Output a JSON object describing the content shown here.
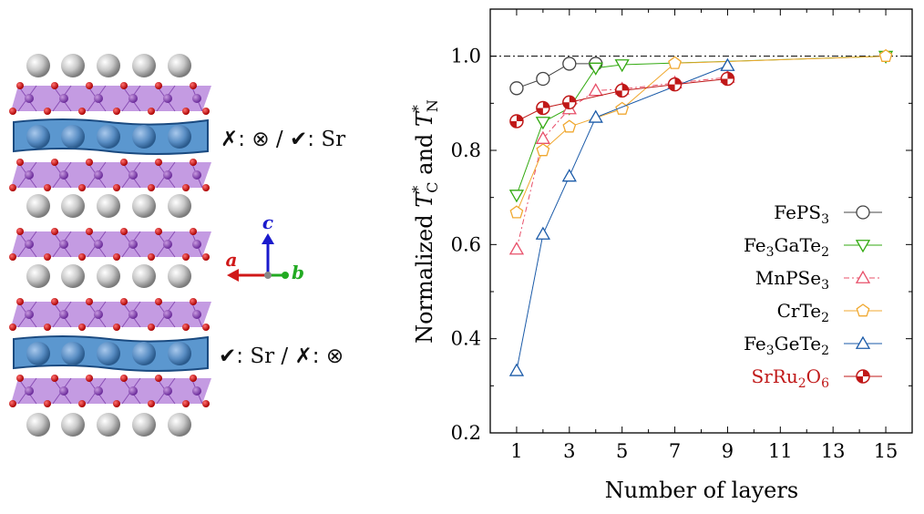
{
  "structure_panel": {
    "label_top_cross": "✗",
    "label_top_otimes": "⊗",
    "label_top_sep": " / ",
    "label_top_check": "✔",
    "label_top_element": "Sr",
    "label_bottom_check": "✔",
    "label_bottom_element": "Sr",
    "label_bottom_sep": " / ",
    "label_bottom_cross": "✗",
    "label_bottom_otimes": "⊗",
    "axis_c": "c",
    "axis_a": "a",
    "axis_b": "b",
    "colors": {
      "sphere_gray": "#c8c8c8",
      "oxygen": "#cc1010",
      "octahedra": "#9b59c6",
      "sr_layer": "#4a8cc8",
      "axis_c": "#1a1acc",
      "axis_a": "#d01818",
      "axis_b": "#22aa22"
    }
  },
  "chart_data": {
    "type": "line",
    "xlabel": "Number of layers",
    "ylabel_parts": [
      "Normalized ",
      "T",
      "*",
      "C",
      " and ",
      "T",
      "*",
      "N"
    ],
    "xlim": [
      0,
      16
    ],
    "ylim": [
      0.2,
      1.1
    ],
    "xticks": [
      1,
      3,
      5,
      7,
      9,
      11,
      13,
      15
    ],
    "yticks": [
      0.2,
      0.4,
      0.6,
      0.8,
      1.0
    ],
    "ytick_labels": [
      "0.2",
      "0.4",
      "0.6",
      "0.8",
      "1.0"
    ],
    "reference_line": 1.0,
    "grid": false,
    "legend_position": "right",
    "series": [
      {
        "name": "FePS3",
        "label_parts": [
          [
            "FePS",
            ""
          ],
          [
            "3",
            "sub"
          ]
        ],
        "color": "#444444",
        "marker": "circle",
        "dashed": false,
        "x": [
          1,
          2,
          3,
          4
        ],
        "y": [
          0.932,
          0.952,
          0.984,
          0.984
        ]
      },
      {
        "name": "Fe3GaTe2",
        "label_parts": [
          [
            "Fe",
            ""
          ],
          [
            "3",
            "sub"
          ],
          [
            "GaTe",
            ""
          ],
          [
            "2",
            "sub"
          ]
        ],
        "color": "#33aa11",
        "marker": "triangle-down",
        "dashed": false,
        "x": [
          1,
          2,
          3,
          4,
          5,
          15
        ],
        "y": [
          0.705,
          0.86,
          0.89,
          0.975,
          0.982,
          1.0
        ]
      },
      {
        "name": "MnPSe3",
        "label_parts": [
          [
            "MnPSe",
            ""
          ],
          [
            "3",
            "sub"
          ]
        ],
        "color": "#e8506a",
        "marker": "triangle-up",
        "dashed": true,
        "x": [
          1,
          2,
          3,
          4,
          5,
          7,
          9
        ],
        "y": [
          0.59,
          0.825,
          0.888,
          0.927,
          0.93,
          0.943,
          0.955
        ]
      },
      {
        "name": "CrTe2",
        "label_parts": [
          [
            "CrTe",
            ""
          ],
          [
            "2",
            "sub"
          ]
        ],
        "color": "#f0a830",
        "marker": "pentagon",
        "dashed": false,
        "x": [
          1,
          2,
          3,
          5,
          7,
          15
        ],
        "y": [
          0.668,
          0.8,
          0.85,
          0.888,
          0.985,
          1.0
        ]
      },
      {
        "name": "Fe3GeTe2",
        "label_parts": [
          [
            "Fe",
            ""
          ],
          [
            "3",
            "sub"
          ],
          [
            "GeTe",
            ""
          ],
          [
            "2",
            "sub"
          ]
        ],
        "color": "#1a5aa8",
        "marker": "triangle-up",
        "dashed": false,
        "x": [
          1,
          2,
          3,
          4,
          9
        ],
        "y": [
          0.332,
          0.622,
          0.745,
          0.87,
          0.98
        ]
      },
      {
        "name": "SrRu2O6",
        "label_parts": [
          [
            "SrRu",
            ""
          ],
          [
            "2",
            "sub"
          ],
          [
            "O",
            ""
          ],
          [
            "6",
            "sub"
          ]
        ],
        "color": "#c01818",
        "marker": "quartered-circle",
        "dashed": false,
        "label_color": "#c01818",
        "x": [
          1,
          2,
          3,
          5,
          7,
          9
        ],
        "y": [
          0.862,
          0.89,
          0.902,
          0.927,
          0.94,
          0.952
        ]
      }
    ]
  }
}
